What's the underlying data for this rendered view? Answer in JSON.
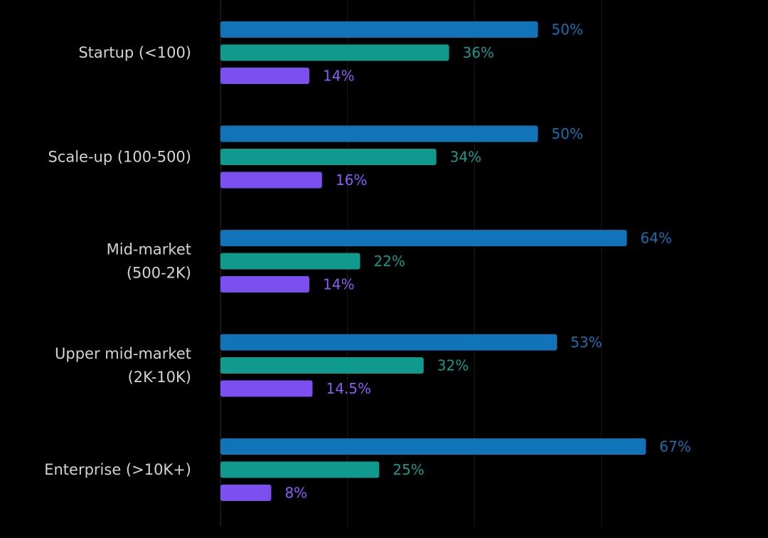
{
  "chart_data": {
    "type": "bar",
    "orientation": "horizontal",
    "categories": [
      [
        "Startup (<100)"
      ],
      [
        "Scale-up (100-500)"
      ],
      [
        "Mid-market",
        "(500-2K)"
      ],
      [
        "Upper mid-market",
        "(2K-10K)"
      ],
      [
        "Enterprise (>10K+)"
      ]
    ],
    "series": [
      {
        "values": [
          50,
          50,
          64,
          53,
          67
        ],
        "labels": [
          "50%",
          "50%",
          "64%",
          "53%",
          "67%"
        ],
        "color": "#1274b8",
        "label_color": "#1a6fae"
      },
      {
        "values": [
          36,
          34,
          22,
          32,
          25
        ],
        "labels": [
          "36%",
          "34%",
          "22%",
          "32%",
          "25%"
        ],
        "color": "#109a8e",
        "label_color": "#16998c"
      },
      {
        "values": [
          14,
          16,
          14,
          14.5,
          8
        ],
        "labels": [
          "14%",
          "16%",
          "14%",
          "14.5%",
          "8%"
        ],
        "color": "#7c4ff0",
        "label_color": "#8b5cf6"
      }
    ],
    "xlim": [
      0,
      100
    ],
    "grid": true,
    "background": "#000000"
  }
}
